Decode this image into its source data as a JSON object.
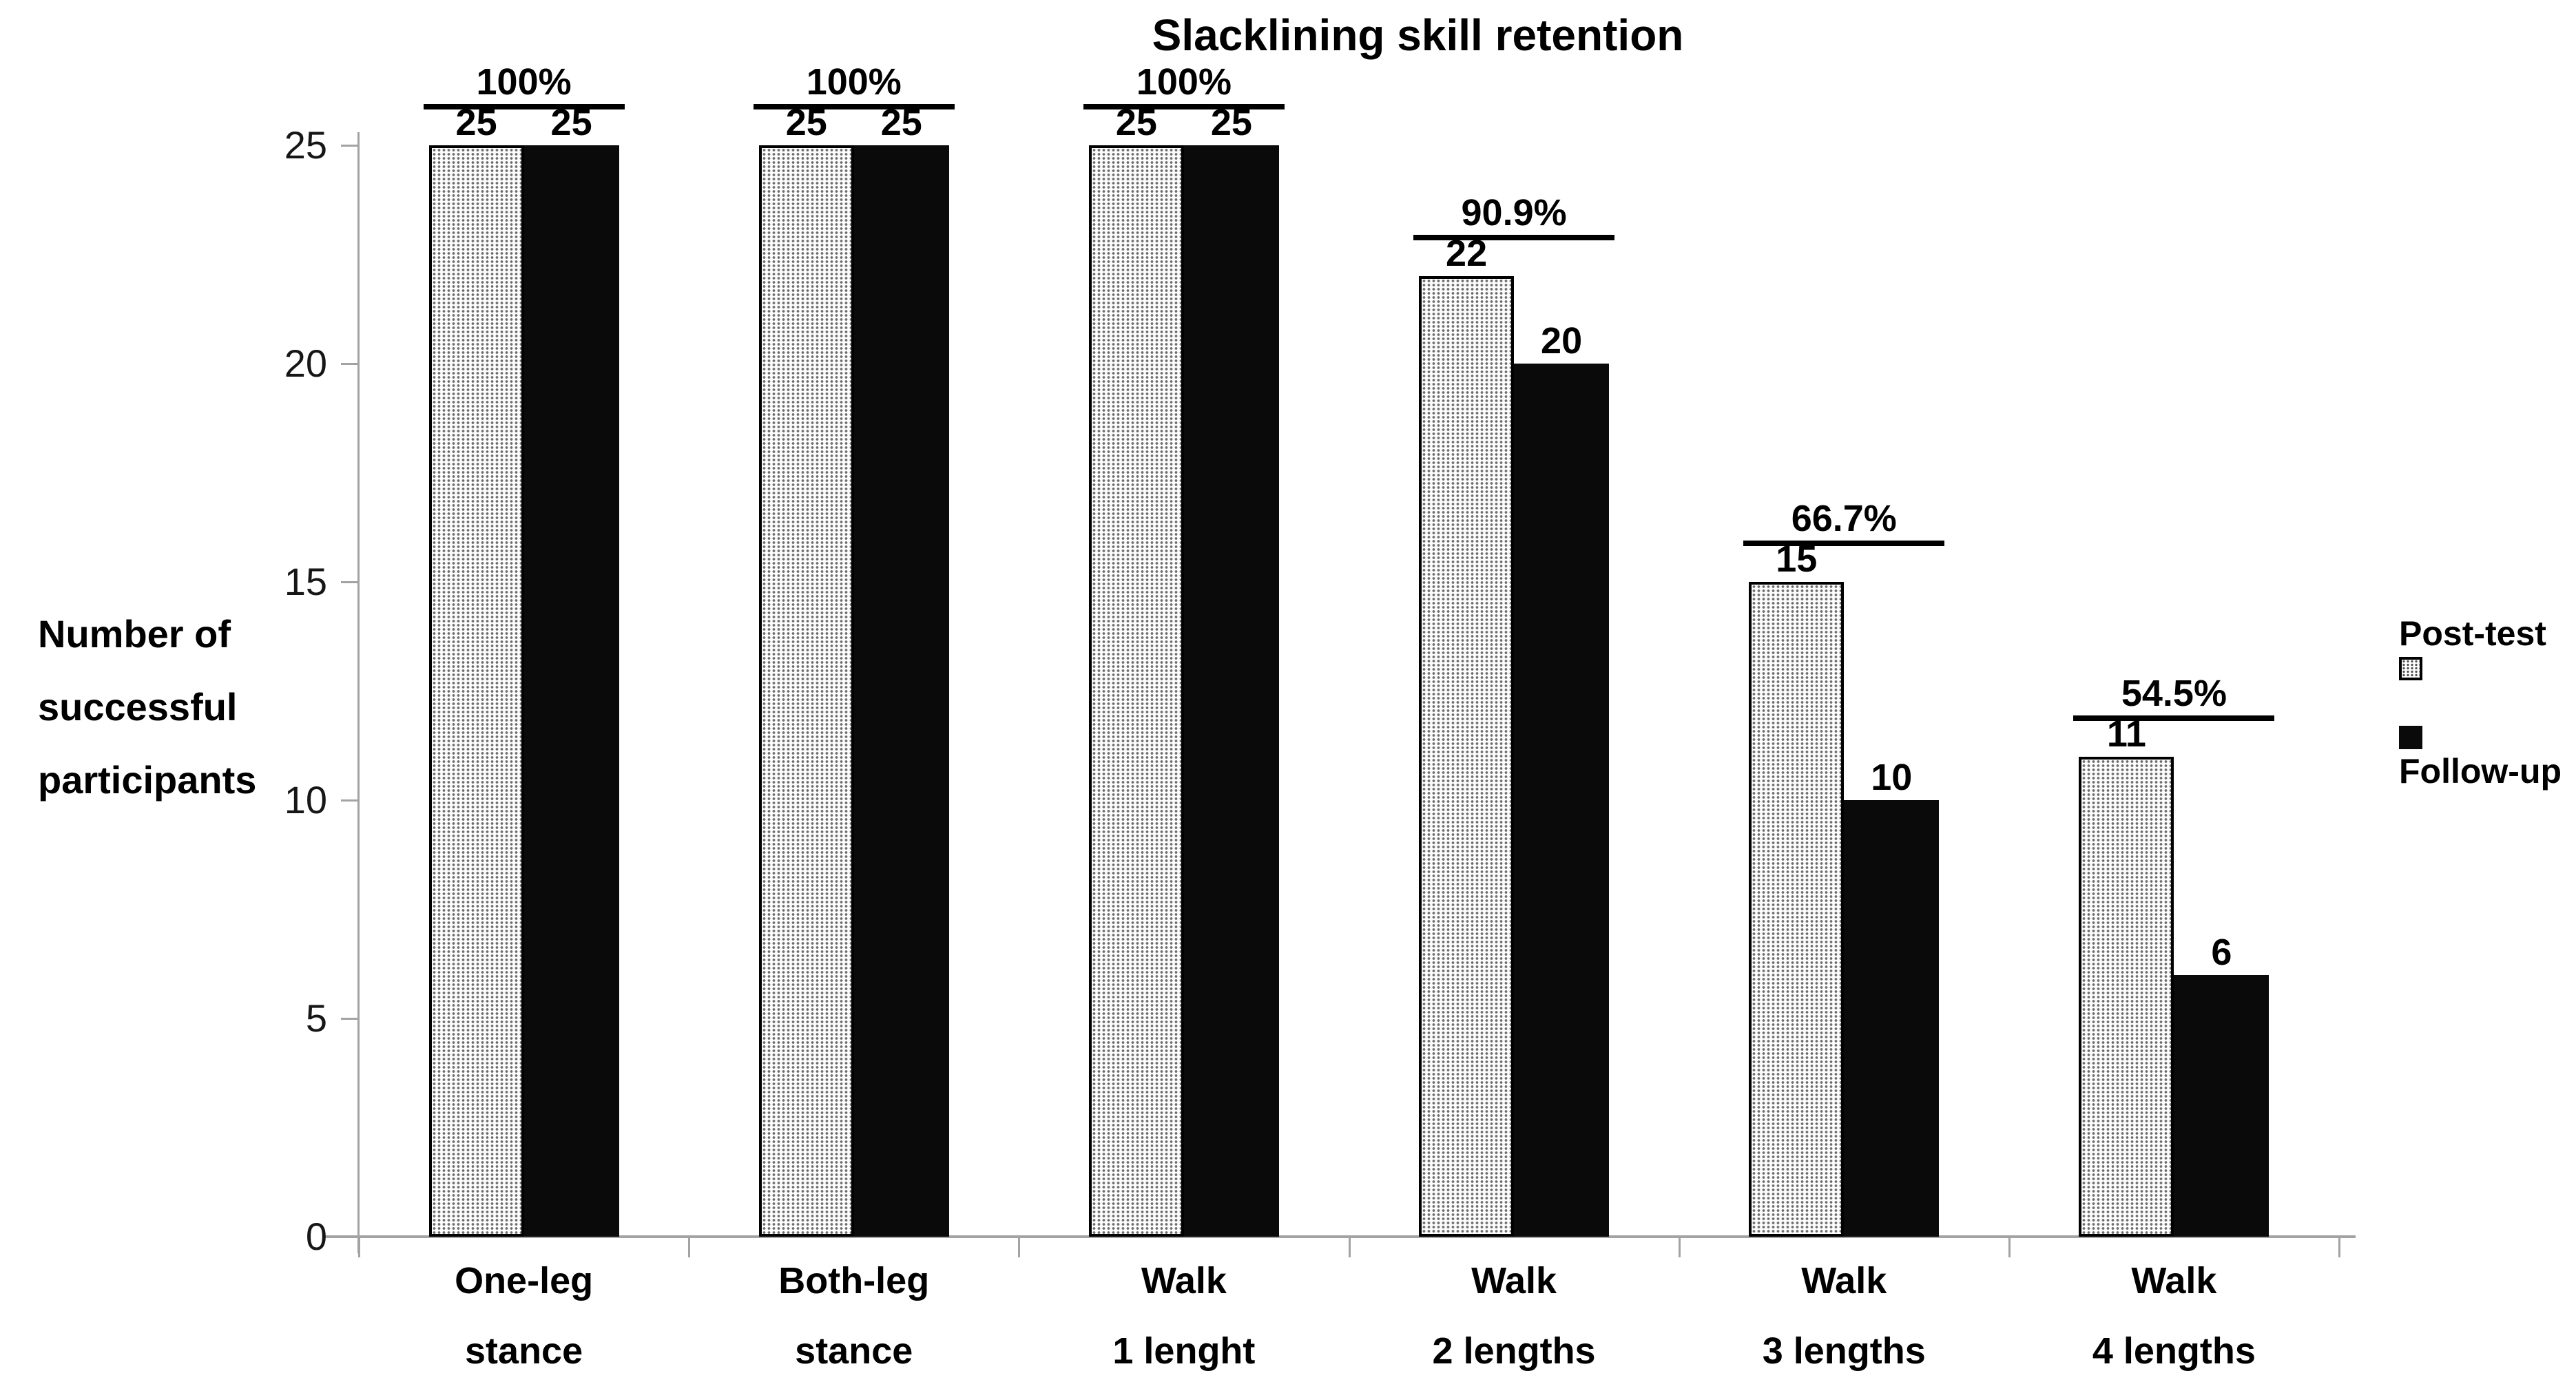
{
  "chart_data": {
    "type": "bar",
    "title": "Slacklining skill retention",
    "ylabel_lines": [
      "Number of",
      "successful",
      "participants"
    ],
    "xlabel": "",
    "ylim": [
      0,
      25
    ],
    "y_ticks": [
      0,
      5,
      10,
      15,
      20,
      25
    ],
    "grid": false,
    "legend_position": "right-middle",
    "categories": [
      [
        "One-leg",
        "stance"
      ],
      [
        "Both-leg",
        "stance"
      ],
      [
        "Walk",
        "1 lenght"
      ],
      [
        "Walk",
        "2 lengths"
      ],
      [
        "Walk",
        "3 lengths"
      ],
      [
        "Walk",
        "4 lengths"
      ]
    ],
    "series": [
      {
        "name": "Post-test",
        "pattern": "halftone-dots",
        "values": [
          25,
          25,
          25,
          22,
          15,
          11
        ]
      },
      {
        "name": "Follow-up",
        "pattern": "solid",
        "color": "#0a0a0a",
        "values": [
          25,
          25,
          25,
          20,
          10,
          6
        ]
      }
    ],
    "group_percent_labels": [
      "100%",
      "100%",
      "100%",
      "90.9%",
      "66.7%",
      "54.5%"
    ],
    "colors": {
      "axis": "#a3a3a3",
      "text": "#000000",
      "bar_border": "#000000",
      "halftone_dot": "#6f6f6f",
      "follow_up_fill": "#0a0a0a"
    }
  }
}
